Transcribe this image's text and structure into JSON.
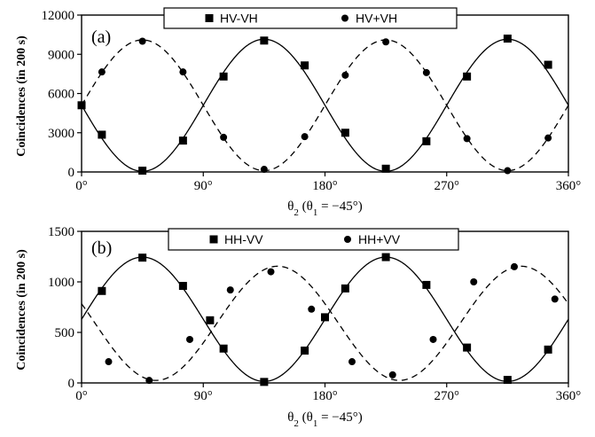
{
  "chart_data": [
    {
      "type": "scatter",
      "panel_label": "(a)",
      "xlabel": "θ2 (θ1 = −45°)",
      "xlabel_parts": {
        "base": "θ",
        "sub": "2",
        "mid": " (θ",
        "sub2": "1",
        "tail": " = −45°)"
      },
      "ylabel": "Coincidences (in 200 s)",
      "xlim": [
        0,
        360
      ],
      "ylim": [
        0,
        12000
      ],
      "x_ticks": [
        "0°",
        "90°",
        "180°",
        "270°",
        "360°"
      ],
      "x_tick_values": [
        0,
        90,
        180,
        270,
        360
      ],
      "y_ticks": [
        "0",
        "3000",
        "6000",
        "9000",
        "12000"
      ],
      "y_tick_values": [
        0,
        3000,
        6000,
        9000,
        12000
      ],
      "grid": false,
      "legend_placement": "top-center",
      "series": [
        {
          "name": "HV-VH",
          "marker": "square",
          "line": "solid",
          "fit": {
            "offset": 5100,
            "amplitude": 5050,
            "form": "offset - amplitude*sin(2x)"
          },
          "points": [
            [
              0,
              5100
            ],
            [
              15,
              2850
            ],
            [
              45,
              100
            ],
            [
              75,
              2400
            ],
            [
              105,
              7300
            ],
            [
              135,
              10050
            ],
            [
              165,
              8150
            ],
            [
              195,
              3000
            ],
            [
              225,
              250
            ],
            [
              255,
              2350
            ],
            [
              285,
              7300
            ],
            [
              315,
              10200
            ],
            [
              345,
              8200
            ]
          ]
        },
        {
          "name": "HV+VH",
          "marker": "circle",
          "line": "dashed",
          "fit": {
            "offset": 5100,
            "amplitude": 5000,
            "form": "offset + amplitude*sin(2x)"
          },
          "points": [
            [
              15,
              7650
            ],
            [
              45,
              10000
            ],
            [
              75,
              7650
            ],
            [
              105,
              2650
            ],
            [
              135,
              200
            ],
            [
              165,
              2700
            ],
            [
              195,
              7400
            ],
            [
              225,
              9950
            ],
            [
              255,
              7600
            ],
            [
              285,
              2550
            ],
            [
              315,
              100
            ],
            [
              345,
              2600
            ]
          ]
        }
      ]
    },
    {
      "type": "scatter",
      "panel_label": "(b)",
      "xlabel": "θ2 (θ1 = −45°)",
      "xlabel_parts": {
        "base": "θ",
        "sub": "2",
        "mid": " (θ",
        "sub2": "1",
        "tail": " = −45°)"
      },
      "ylabel": "Coincidences (in 200 s)",
      "xlim": [
        0,
        360
      ],
      "ylim": [
        0,
        1500
      ],
      "x_ticks": [
        "0°",
        "90°",
        "180°",
        "270°",
        "360°"
      ],
      "x_tick_values": [
        0,
        90,
        180,
        270,
        360
      ],
      "y_ticks": [
        "0",
        "500",
        "1000",
        "1500"
      ],
      "y_tick_values": [
        0,
        500,
        1000,
        1500
      ],
      "grid": false,
      "legend_placement": "top-center",
      "series": [
        {
          "name": "HH-VV",
          "marker": "square",
          "line": "solid",
          "fit": {
            "offset": 630,
            "amplitude": 615,
            "form": "offset + amplitude*sin(2x)"
          },
          "points": [
            [
              15,
              910
            ],
            [
              45,
              1240
            ],
            [
              75,
              960
            ],
            [
              95,
              620
            ],
            [
              105,
              340
            ],
            [
              135,
              10
            ],
            [
              165,
              320
            ],
            [
              180,
              650
            ],
            [
              195,
              935
            ],
            [
              225,
              1245
            ],
            [
              255,
              970
            ],
            [
              285,
              350
            ],
            [
              315,
              30
            ],
            [
              345,
              330
            ]
          ]
        },
        {
          "name": "HH+VV",
          "marker": "circle",
          "line": "dashed",
          "fit": {
            "offset": 590,
            "amplitude": 565,
            "phase_deg": 10,
            "form": "offset - amplitude*sin(2(x - phase))"
          },
          "points": [
            [
              20,
              210
            ],
            [
              50,
              25
            ],
            [
              80,
              430
            ],
            [
              110,
              920
            ],
            [
              140,
              1100
            ],
            [
              170,
              730
            ],
            [
              200,
              210
            ],
            [
              230,
              80
            ],
            [
              260,
              430
            ],
            [
              290,
              1000
            ],
            [
              320,
              1150
            ],
            [
              350,
              830
            ]
          ]
        }
      ]
    }
  ],
  "colors": {
    "ink": "#000000",
    "background": "#ffffff"
  }
}
